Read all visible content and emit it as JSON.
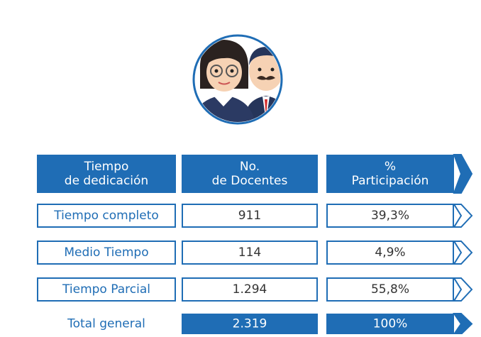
{
  "table": {
    "header": [
      [
        "Tiempo",
        "de dedicación"
      ],
      [
        "No.",
        "de Docentes"
      ],
      [
        "%",
        "Participación"
      ]
    ],
    "rows": [
      [
        "Tiempo completo",
        "911",
        "39,3%"
      ],
      [
        "Medio Tiempo",
        "114",
        "4,9%"
      ],
      [
        "Tiempo Parcial",
        "1.294",
        "55,8%"
      ]
    ],
    "total": [
      "Total general",
      "2.319",
      "100%"
    ]
  }
}
